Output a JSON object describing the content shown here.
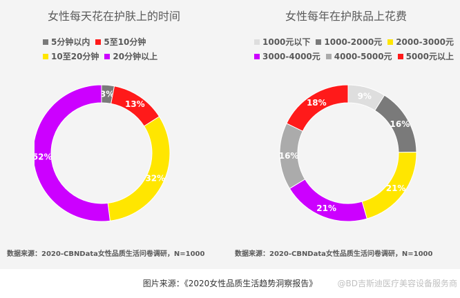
{
  "chart_data": [
    {
      "type": "pie",
      "title": "女性每天花在护肤上的时间",
      "categories": [
        "5分钟以内",
        "5至10分钟",
        "10至20分钟",
        "20分钟以上"
      ],
      "values": [
        3,
        13,
        32,
        52
      ],
      "value_labels": [
        "3%",
        "13%",
        "32%",
        "52%"
      ],
      "colors": [
        "#7a7a7a",
        "#ff1a1a",
        "#ffe600",
        "#cc00ff"
      ],
      "legend": "top"
    },
    {
      "type": "pie",
      "title": "女性每年在护肤品上花费",
      "categories": [
        "1000元以下",
        "1000-2000元",
        "2000-3000元",
        "3000-4000元",
        "4000-5000元",
        "5000元以上"
      ],
      "values": [
        9,
        16,
        21,
        21,
        16,
        18
      ],
      "value_labels": [
        "9%",
        "16%",
        "21%",
        "21%",
        "16%",
        "18%"
      ],
      "colors": [
        "#dedede",
        "#7a7a7a",
        "#ffe600",
        "#cc00ff",
        "#ababab",
        "#ff1a1a"
      ],
      "legend": "top"
    }
  ],
  "source_left": "数据来源：2020-CBNData女性品质生活问卷调研，N=1000",
  "source_right": "数据来源：2020-CBNData女性品质生活问卷调研，N=1000",
  "caption": "图片来源：《2020女性品质生活趋势洞察报告》",
  "watermark": "@BD吉斯迪医疗美容设备服务商"
}
